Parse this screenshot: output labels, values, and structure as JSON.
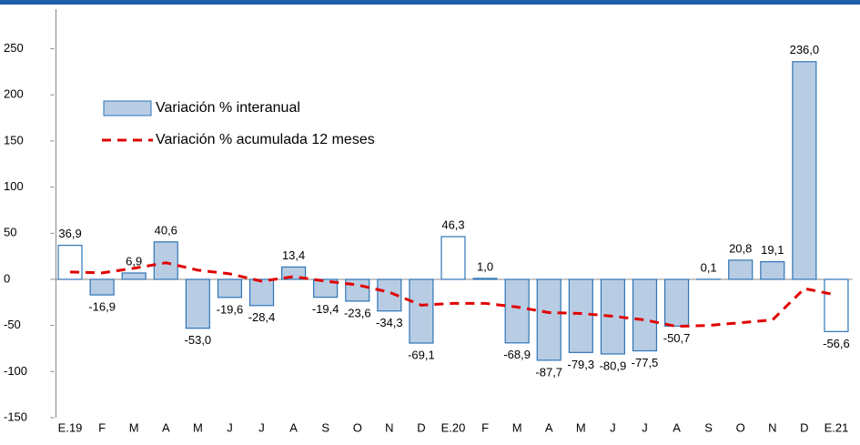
{
  "chart_data": {
    "type": "bar",
    "categories": [
      "E.19",
      "F",
      "M",
      "A",
      "M",
      "J",
      "J",
      "A",
      "S",
      "O",
      "N",
      "D",
      "E.20",
      "F",
      "M",
      "A",
      "M",
      "J",
      "J",
      "A",
      "S",
      "O",
      "N",
      "D",
      "E.21"
    ],
    "series": [
      {
        "name": "Variación % interanual",
        "type": "bar",
        "color": "#b8cce4",
        "stroke": "#2e75b6",
        "fills": [
          "#ffffff",
          "#b8cce4",
          "#b8cce4",
          "#b8cce4",
          "#b8cce4",
          "#b8cce4",
          "#b8cce4",
          "#b8cce4",
          "#b8cce4",
          "#b8cce4",
          "#b8cce4",
          "#b8cce4",
          "#ffffff",
          "#ffffff",
          "#b8cce4",
          "#b8cce4",
          "#b8cce4",
          "#b8cce4",
          "#b8cce4",
          "#b8cce4",
          "#ffffff",
          "#b8cce4",
          "#b8cce4",
          "#b8cce4",
          "#ffffff"
        ],
        "values": [
          36.9,
          -16.9,
          6.9,
          40.6,
          -53.0,
          -19.6,
          -28.4,
          13.4,
          -19.4,
          -23.6,
          -34.3,
          -69.1,
          46.3,
          1.0,
          -68.9,
          -87.7,
          -79.3,
          -80.9,
          -77.5,
          -50.7,
          0.1,
          20.8,
          19.1,
          236.0,
          -56.6
        ],
        "value_labels": [
          "36,9",
          "-16,9",
          "6,9",
          "40,6",
          "-53,0",
          "-19,6",
          "-28,4",
          "13,4",
          "-19,4",
          "-23,6",
          "-34,3",
          "-69,1",
          "46,3",
          "1,0",
          "-68,9",
          "-87,7",
          "-79,3",
          "-80,9",
          "-77,5",
          "-50,7",
          "0,1",
          "20,8",
          "19,1",
          "236,0",
          "-56,6"
        ]
      },
      {
        "name": "Variación % acumulada 12 meses",
        "type": "line",
        "color": "#e00000",
        "values": [
          8,
          7,
          12,
          18,
          10,
          6,
          -2,
          3,
          -2,
          -6,
          -14,
          -28,
          -26,
          -26,
          -30,
          -36,
          -37,
          -40,
          -44,
          -51,
          -50,
          -47,
          -44,
          -10,
          -17
        ]
      }
    ],
    "ylim": [
      -150,
      293
    ],
    "yticks": [
      -150,
      -100,
      -50,
      0,
      50,
      100,
      150,
      200,
      250
    ],
    "grid": false
  }
}
